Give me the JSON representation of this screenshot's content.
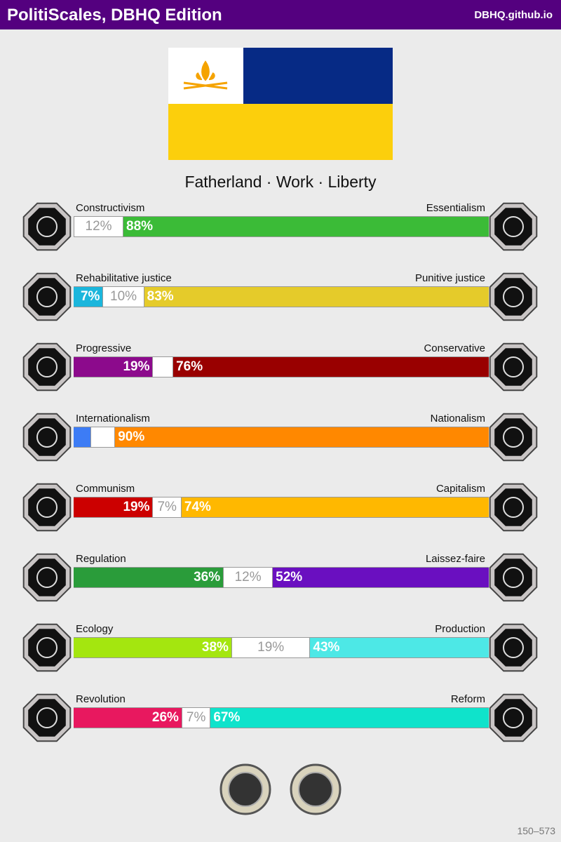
{
  "header": {
    "title": "PolitiScales, DBHQ Edition",
    "link": "DBHQ.github.io"
  },
  "slogan": "Fatherland · Work · Liberty",
  "axes": [
    {
      "left": "Constructivism",
      "right": "Essentialism",
      "segments": [
        {
          "value": 12,
          "label": "12%",
          "color": "#ffffff"
        },
        {
          "value": 88,
          "label": "88%",
          "color": "#3bbb37"
        }
      ]
    },
    {
      "left": "Rehabilitative justice",
      "right": "Punitive justice",
      "segments": [
        {
          "value": 7,
          "label": "7%",
          "color": "#1bb6dc"
        },
        {
          "value": 10,
          "label": "10%",
          "color": "#ffffff"
        },
        {
          "value": 83,
          "label": "83%",
          "color": "#e5cb2a"
        }
      ]
    },
    {
      "left": "Progressive",
      "right": "Conservative",
      "segments": [
        {
          "value": 19,
          "label": "19%",
          "color": "#8c0a8c"
        },
        {
          "value": 5,
          "color": "#ffffff"
        },
        {
          "value": 76,
          "label": "76%",
          "color": "#990000"
        }
      ]
    },
    {
      "left": "Internationalism",
      "right": "Nationalism",
      "segments": [
        {
          "value": 4,
          "color": "#3d7cf5"
        },
        {
          "value": 6,
          "color": "#ffffff"
        },
        {
          "value": 90,
          "label": "90%",
          "color": "#ff8800"
        }
      ]
    },
    {
      "left": "Communism",
      "right": "Capitalism",
      "segments": [
        {
          "value": 19,
          "label": "19%",
          "color": "#cc0000"
        },
        {
          "value": 7,
          "label": "7%",
          "color": "#ffffff"
        },
        {
          "value": 74,
          "label": "74%",
          "color": "#ffb800"
        }
      ]
    },
    {
      "left": "Regulation",
      "right": "Laissez-faire",
      "segments": [
        {
          "value": 36,
          "label": "36%",
          "color": "#2a9c3a"
        },
        {
          "value": 12,
          "label": "12%",
          "color": "#ffffff"
        },
        {
          "value": 52,
          "label": "52%",
          "color": "#6a0fc0"
        }
      ]
    },
    {
      "left": "Ecology",
      "right": "Production",
      "segments": [
        {
          "value": 38,
          "label": "38%",
          "color": "#a4e60f"
        },
        {
          "value": 19,
          "label": "19%",
          "color": "#ffffff"
        },
        {
          "value": 43,
          "label": "43%",
          "color": "#4de8e6"
        }
      ]
    },
    {
      "left": "Revolution",
      "right": "Reform",
      "segments": [
        {
          "value": 26,
          "label": "26%",
          "color": "#e8185f"
        },
        {
          "value": 7,
          "label": "7%",
          "color": "#ffffff"
        },
        {
          "value": 67,
          "label": "67%",
          "color": "#0fe3cb"
        }
      ]
    }
  ],
  "footer": "150–573"
}
